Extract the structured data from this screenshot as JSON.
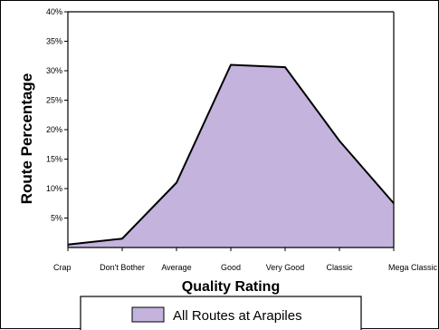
{
  "chart_data": {
    "type": "area",
    "title": "",
    "xlabel": "Quality Rating",
    "ylabel": "Route Percentage",
    "categories": [
      "Crap",
      "Don't Bother",
      "Average",
      "Good",
      "Very Good",
      "Classic",
      "Mega Classic"
    ],
    "series": [
      {
        "name": "All Routes at Arapiles",
        "values": [
          0.5,
          1.5,
          11,
          31,
          30.6,
          18.1,
          7.5
        ],
        "color": "#c4b3dd"
      }
    ],
    "ylim": [
      0,
      40
    ],
    "y_ticks": [
      "5%",
      "10%",
      "15%",
      "20%",
      "25%",
      "30%",
      "35%",
      "40%"
    ],
    "grid": false,
    "legend": "bottom"
  }
}
